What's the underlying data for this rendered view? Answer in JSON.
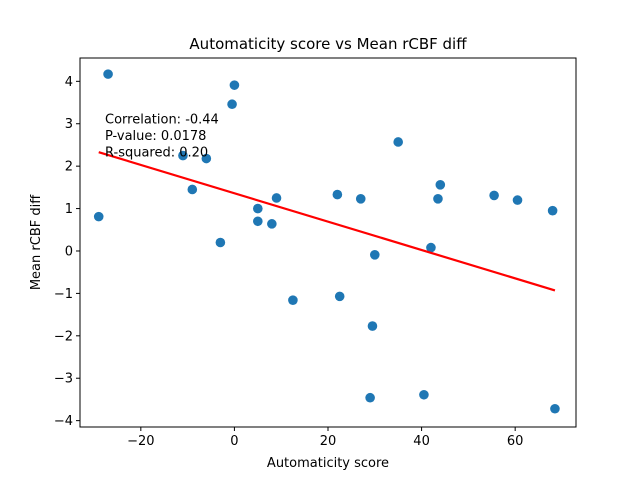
{
  "chart_data": {
    "type": "scatter",
    "title": "Automaticity score vs Mean rCBF diff",
    "xlabel": "Automaticity score",
    "ylabel": "Mean rCBF diff",
    "xlim": [
      -33,
      73
    ],
    "ylim": [
      -4.15,
      4.55
    ],
    "xticks": [
      -20,
      0,
      20,
      40,
      60
    ],
    "xtick_labels": [
      "−20",
      "0",
      "20",
      "40",
      "60"
    ],
    "yticks": [
      -4,
      -3,
      -2,
      -1,
      0,
      1,
      2,
      3,
      4
    ],
    "ytick_labels": [
      "−4",
      "−3",
      "−2",
      "−1",
      "0",
      "1",
      "2",
      "3",
      "4"
    ],
    "grid": false,
    "colors": {
      "points": "#1f77b4",
      "fit_line": "#ff0000"
    },
    "points": [
      {
        "x": -27.0,
        "y": 4.17
      },
      {
        "x": -29.0,
        "y": 0.81
      },
      {
        "x": -11.0,
        "y": 2.25
      },
      {
        "x": -9.0,
        "y": 1.45
      },
      {
        "x": -6.0,
        "y": 2.18
      },
      {
        "x": -3.0,
        "y": 0.2
      },
      {
        "x": -0.5,
        "y": 3.46
      },
      {
        "x": 0.0,
        "y": 3.91
      },
      {
        "x": 5.0,
        "y": 1.0
      },
      {
        "x": 5.0,
        "y": 0.7
      },
      {
        "x": 8.0,
        "y": 0.64
      },
      {
        "x": 9.0,
        "y": 1.25
      },
      {
        "x": 12.5,
        "y": -1.16
      },
      {
        "x": 22.0,
        "y": 1.33
      },
      {
        "x": 22.5,
        "y": -1.07
      },
      {
        "x": 27.0,
        "y": 1.23
      },
      {
        "x": 29.0,
        "y": -3.46
      },
      {
        "x": 29.5,
        "y": -1.77
      },
      {
        "x": 30.0,
        "y": -0.09
      },
      {
        "x": 35.0,
        "y": 2.57
      },
      {
        "x": 40.5,
        "y": -3.39
      },
      {
        "x": 42.0,
        "y": 0.08
      },
      {
        "x": 43.5,
        "y": 1.23
      },
      {
        "x": 44.0,
        "y": 1.56
      },
      {
        "x": 55.5,
        "y": 1.31
      },
      {
        "x": 60.5,
        "y": 1.2
      },
      {
        "x": 68.0,
        "y": 0.95
      },
      {
        "x": 68.5,
        "y": -3.72
      }
    ],
    "fit_line": {
      "x": [
        -29.0,
        68.5
      ],
      "y": [
        2.33,
        -0.93
      ]
    },
    "annotations": [
      "Correlation: -0.44",
      "P-value: 0.0178",
      "R-squared: 0.20"
    ]
  }
}
